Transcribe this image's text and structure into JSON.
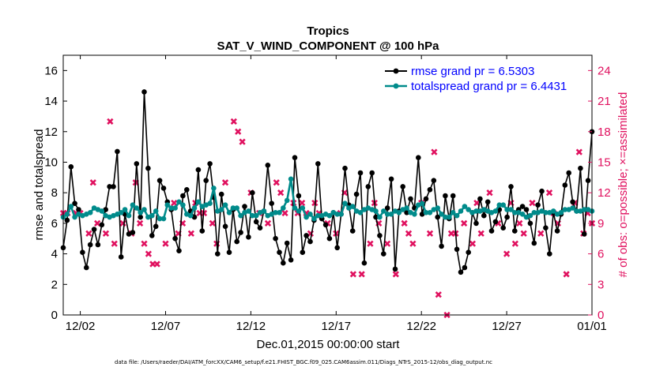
{
  "chart_data": {
    "type": "line",
    "title": "Tropics",
    "subtitle": "SAT_V_WIND_COMPONENT @ 100 hPa",
    "xlabel": "Dec.01,2015 00:00:00 start",
    "ylabel": "rmse and totalspread",
    "ylabel_right": "# of obs: o=possible; ×=assimilated",
    "xlim": [
      0,
      31
    ],
    "ylim": [
      0,
      17
    ],
    "ylim_right": [
      0,
      25.5
    ],
    "x_ticks": [
      1,
      6,
      11,
      16,
      21,
      26,
      31
    ],
    "x_tick_labels": [
      "12/02",
      "12/07",
      "12/12",
      "12/17",
      "12/22",
      "12/27",
      "01/01"
    ],
    "y_ticks": [
      0,
      2,
      4,
      6,
      8,
      10,
      12,
      14,
      16
    ],
    "y_tick_labels": [
      "0",
      "2",
      "4",
      "6",
      "8",
      "10",
      "12",
      "14",
      "16"
    ],
    "y_ticks_right": [
      0,
      3,
      6,
      9,
      12,
      15,
      18,
      21,
      24
    ],
    "y_tick_labels_right": [
      "0",
      "3",
      "6",
      "9",
      "12",
      "15",
      "18",
      "21",
      "24"
    ],
    "colors": {
      "rmse": "#000000",
      "spread": "#008b8b",
      "obs": "#e0115f",
      "legend_text": "#0000ff"
    },
    "series": [
      {
        "name": "rmse grand pr = 6.5303",
        "color": "#000000",
        "values": [
          4.4,
          6.2,
          9.7,
          7.3,
          6.9,
          4.1,
          3.1,
          4.6,
          5.6,
          4.6,
          5.9,
          6.9,
          8.4,
          8.4,
          10.7,
          3.8,
          6.6,
          5.3,
          5.4,
          9.9,
          6.4,
          14.6,
          9.6,
          5.2,
          5.8,
          8.8,
          8.3,
          7.4,
          6.9,
          5.0,
          4.2,
          7.8,
          8.2,
          6.8,
          6.4,
          9.5,
          5.5,
          8.8,
          9.9,
          7.7,
          4.0,
          7.9,
          5.8,
          4.1,
          6.9,
          4.8,
          5.4,
          7.1,
          5.1,
          8.0,
          6.1,
          5.7,
          6.8,
          9.8,
          7.3,
          5.0,
          4.1,
          3.4,
          4.7,
          3.6,
          10.3,
          7.8,
          4.1,
          5.2,
          4.8,
          6.2,
          9.9,
          6.3,
          5.9,
          5.0,
          6.7,
          4.4,
          6.6,
          9.6,
          7.2,
          5.5,
          7.9,
          9.3,
          3.4,
          8.4,
          9.3,
          6.4,
          5.2,
          4.0,
          7.0,
          8.9,
          3.0,
          6.8,
          8.4,
          6.7,
          7.6,
          7.0,
          10.3,
          6.6,
          7.6,
          8.2,
          8.8,
          6.4,
          4.5,
          7.8,
          6.3,
          7.8,
          4.3,
          2.8,
          3.1,
          4.1,
          6.7,
          6.0,
          7.6,
          6.5,
          7.4,
          5.5,
          6.1,
          6.9,
          5.7,
          6.4,
          8.4,
          5.5,
          6.9,
          7.1,
          6.9,
          6.0,
          4.7,
          7.2,
          8.1,
          5.7,
          4.0,
          6.7,
          5.5,
          6.6,
          8.5,
          9.3,
          7.4,
          6.8,
          9.6,
          5.3,
          8.8,
          12.0
        ]
      },
      {
        "name": "totalspread grand pr = 6.4431",
        "color": "#008b8b",
        "values": [
          6.4,
          6.6,
          7.1,
          6.4,
          6.6,
          6.5,
          6.6,
          6.7,
          7.0,
          6.9,
          6.8,
          6.5,
          6.4,
          6.5,
          6.6,
          6.7,
          6.9,
          6.5,
          7.2,
          7.0,
          6.7,
          6.9,
          6.4,
          6.5,
          6.8,
          6.3,
          6.3,
          7.2,
          7.0,
          7.0,
          7.4,
          7.2,
          6.6,
          6.5,
          7.0,
          7.4,
          7.1,
          7.2,
          7.3,
          8.3,
          6.8,
          6.9,
          7.2,
          6.7,
          7.0,
          7.0,
          6.5,
          6.7,
          6.8,
          6.5,
          6.5,
          6.7,
          6.8,
          6.5,
          6.6,
          6.7,
          6.7,
          7.0,
          7.5,
          8.9,
          7.0,
          6.8,
          7.0,
          6.4,
          6.6,
          6.3,
          6.5,
          6.5,
          6.6,
          6.5,
          6.7,
          6.6,
          6.6,
          7.3,
          7.0,
          7.1,
          6.8,
          6.7,
          6.9,
          7.0,
          6.9,
          6.8,
          6.4,
          6.8,
          6.6,
          6.6,
          6.8,
          6.7,
          6.9,
          7.0,
          6.7,
          6.6,
          7.2,
          7.3,
          6.7,
          6.7,
          6.9,
          7.0,
          6.6,
          6.4,
          6.4,
          6.7,
          6.5,
          6.8,
          7.1,
          6.9,
          6.7,
          6.8,
          6.8,
          6.9,
          6.8,
          6.7,
          6.8,
          7.2,
          7.2,
          6.9,
          6.9,
          6.7,
          6.7,
          6.6,
          6.4,
          6.5,
          6.7,
          6.7,
          6.8,
          6.7,
          6.7,
          6.8,
          6.6,
          6.7,
          6.9,
          6.9,
          7.0,
          6.8,
          6.8,
          6.9,
          6.9,
          6.8
        ]
      }
    ],
    "obs_assimilated_x": [
      0.0,
      0.25,
      0.75,
      1.0,
      1.5,
      1.75,
      2.0,
      2.5,
      2.75,
      3.0,
      3.5,
      4.0,
      4.25,
      4.5,
      4.75,
      5.0,
      5.25,
      5.5,
      6.0,
      6.5,
      6.75,
      7.0,
      7.5,
      7.75,
      8.0,
      8.25,
      8.75,
      9.0,
      9.5,
      10.0,
      10.25,
      10.5,
      11.0,
      11.5,
      12.0,
      12.5,
      12.75,
      13.0,
      13.5,
      13.75,
      14.0,
      14.25,
      14.5,
      14.75,
      15.0,
      15.5,
      16.0,
      16.25,
      16.5,
      17.0,
      17.5,
      18.0,
      18.25,
      18.5,
      19.0,
      19.5,
      20.0,
      20.25,
      20.5,
      21.0,
      21.5,
      21.75,
      22.0,
      22.5,
      22.75,
      23.0,
      23.5,
      24.0,
      24.25,
      24.5,
      25.0,
      25.5,
      26.0,
      26.25,
      26.5,
      26.75,
      27.0,
      27.5,
      28.0,
      28.5,
      28.75,
      29.0,
      29.5,
      30.0,
      30.25,
      30.5,
      30.75,
      31.0
    ],
    "obs_assimilated": [
      10,
      10,
      10,
      10,
      8,
      13,
      9,
      8,
      19,
      7,
      9,
      8,
      13,
      9,
      7,
      6,
      5,
      5,
      7,
      11,
      8,
      9,
      8,
      11,
      10,
      10,
      9,
      7,
      13,
      19,
      18,
      17,
      12,
      10,
      9,
      13,
      12,
      10,
      11,
      10,
      11,
      10,
      8,
      11,
      10,
      9,
      8,
      10,
      12,
      4,
      4,
      7,
      11,
      9,
      7,
      4,
      9,
      8,
      7,
      11,
      8,
      16,
      2,
      0,
      8,
      8,
      9,
      7,
      11,
      8,
      12,
      9,
      6,
      11,
      7,
      9,
      8,
      11,
      8,
      12,
      10,
      9,
      4,
      11,
      16,
      8,
      10,
      9
    ]
  }
}
